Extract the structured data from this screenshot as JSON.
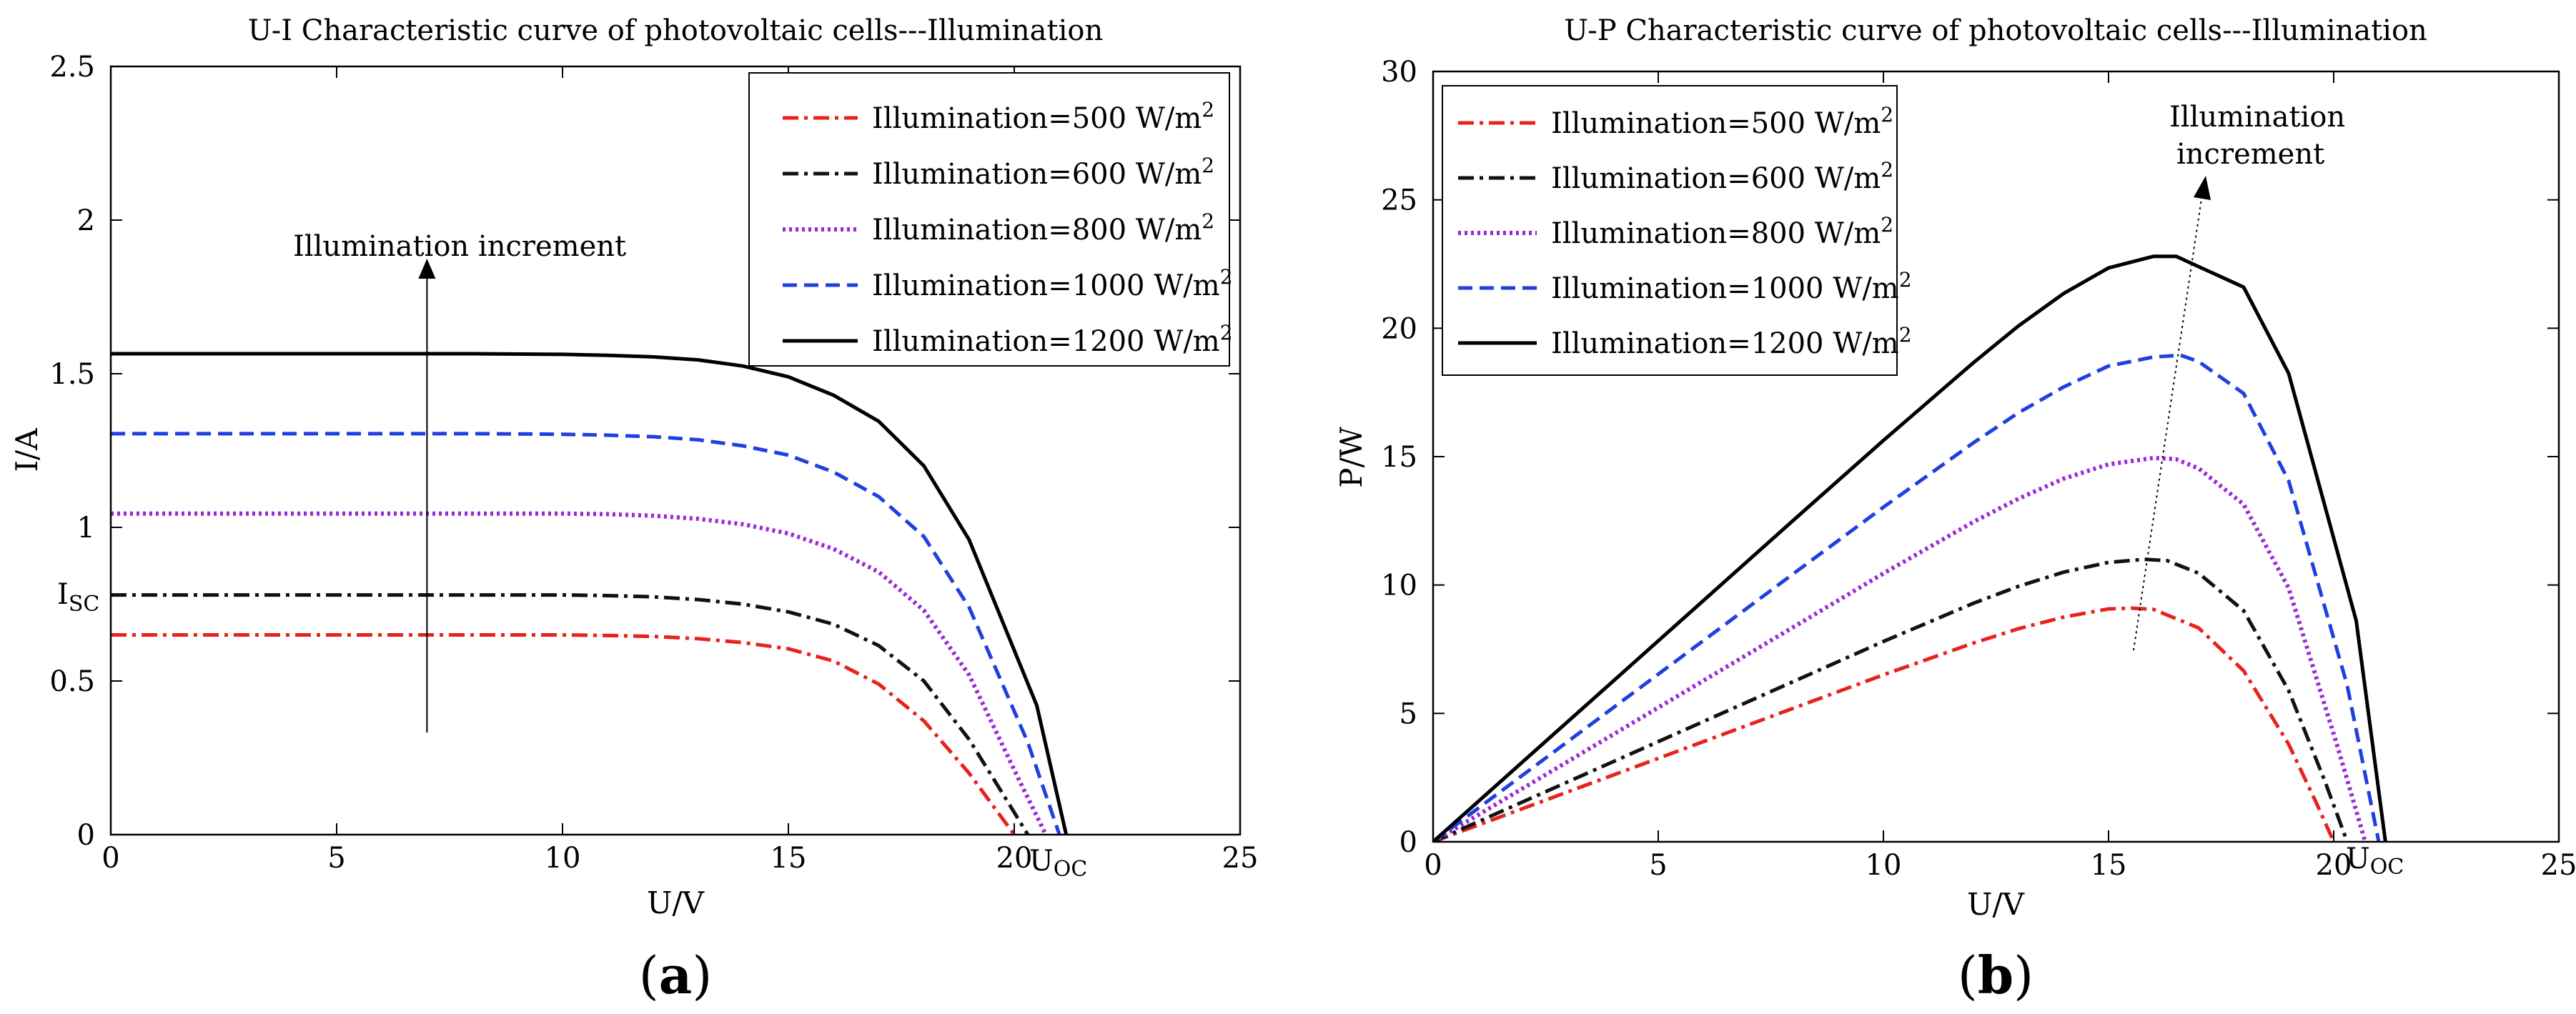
{
  "chart_data": [
    {
      "type": "line",
      "panel": "a",
      "panel_label": "a",
      "title": "U-I Characteristic curve of photovoltaic cells---Illumination",
      "xlabel": "U/V",
      "ylabel": "I/A",
      "xlim": [
        0,
        25
      ],
      "ylim": [
        0,
        2.5
      ],
      "xticks": [
        0,
        5,
        10,
        15,
        20,
        25
      ],
      "xtick_labels": [
        "0",
        "5",
        "10",
        "15",
        "20",
        "25"
      ],
      "yticks": [
        0,
        0.5,
        1,
        1.5,
        2,
        2.5
      ],
      "ytick_labels": [
        "0",
        "0.5",
        "1",
        "1.5",
        "2",
        "2.5"
      ],
      "grid": false,
      "legend_position": "top-right",
      "annotations": {
        "arrow_text": "Illumination  increment",
        "isc_main": "I",
        "isc_sub": "SC",
        "uoc_main": "U",
        "uoc_sub": "OC"
      },
      "series": [
        {
          "name": "Illumination=500 W/m2",
          "label": "Illumination=500 W/m",
          "sup": "2",
          "color": "#e8221c",
          "dash": "22,8,5,8",
          "width": 5,
          "x": [
            0,
            2,
            4,
            6,
            8,
            10,
            11,
            12,
            13,
            14,
            15,
            16,
            17,
            18,
            19,
            19.6,
            20.0
          ],
          "y": [
            0.65,
            0.65,
            0.65,
            0.65,
            0.65,
            0.65,
            0.648,
            0.645,
            0.638,
            0.625,
            0.605,
            0.565,
            0.49,
            0.37,
            0.2,
            0.08,
            0
          ]
        },
        {
          "name": "Illumination=600 W/m2",
          "label": "Illumination=600 W/m",
          "sup": "2",
          "color": "#111111",
          "dash": "22,8,5,8",
          "width": 5,
          "x": [
            0,
            2,
            4,
            6,
            8,
            10,
            11,
            12,
            13,
            14,
            15,
            16,
            17,
            18,
            19,
            19.8,
            20.3
          ],
          "y": [
            0.78,
            0.78,
            0.78,
            0.78,
            0.78,
            0.78,
            0.778,
            0.774,
            0.765,
            0.75,
            0.725,
            0.685,
            0.615,
            0.5,
            0.31,
            0.12,
            0
          ]
        },
        {
          "name": "Illumination=800 W/m2",
          "label": "Illumination=800 W/m",
          "sup": "2",
          "color": "#9b27d9",
          "dash": "4,5",
          "width": 6,
          "x": [
            0,
            2,
            4,
            6,
            8,
            10,
            11,
            12,
            13,
            14,
            15,
            16,
            17,
            18,
            19,
            20.1,
            20.7
          ],
          "y": [
            1.045,
            1.045,
            1.045,
            1.045,
            1.045,
            1.045,
            1.043,
            1.038,
            1.028,
            1.01,
            0.98,
            0.93,
            0.855,
            0.73,
            0.52,
            0.18,
            0
          ]
        },
        {
          "name": "Illumination=1000 W/m2",
          "label": "Illumination=1000 W/m",
          "sup": "2",
          "color": "#1f3fe0",
          "dash": "20,10",
          "width": 5,
          "x": [
            0,
            2,
            4,
            6,
            8,
            10,
            11,
            12,
            13,
            14,
            15,
            16,
            17,
            18,
            19,
            20.3,
            21.0
          ],
          "y": [
            1.305,
            1.305,
            1.305,
            1.305,
            1.305,
            1.303,
            1.3,
            1.295,
            1.285,
            1.265,
            1.235,
            1.18,
            1.1,
            0.97,
            0.74,
            0.3,
            0
          ]
        },
        {
          "name": "Illumination=1200 W/m2",
          "label": "Illumination=1200 W/m",
          "sup": "2",
          "color": "#000000",
          "dash": "",
          "width": 5,
          "x": [
            0,
            2,
            4,
            6,
            8,
            10,
            11,
            12,
            13,
            14,
            15,
            16,
            17,
            18,
            19,
            20.5,
            21.15
          ],
          "y": [
            1.565,
            1.565,
            1.565,
            1.565,
            1.565,
            1.563,
            1.56,
            1.555,
            1.545,
            1.525,
            1.49,
            1.43,
            1.345,
            1.2,
            0.96,
            0.42,
            0
          ]
        }
      ]
    },
    {
      "type": "line",
      "panel": "b",
      "panel_label": "b",
      "title": "U-P Characteristic curve of photovoltaic cells---Illumination",
      "xlabel": "U/V",
      "ylabel": "P/W",
      "xlim": [
        0,
        25
      ],
      "ylim": [
        0,
        30
      ],
      "xticks": [
        0,
        5,
        10,
        15,
        20,
        25
      ],
      "xtick_labels": [
        "0",
        "5",
        "10",
        "15",
        "20",
        "25"
      ],
      "yticks": [
        0,
        5,
        10,
        15,
        20,
        25,
        30
      ],
      "ytick_labels": [
        "0",
        "5",
        "10",
        "15",
        "20",
        "25",
        "30"
      ],
      "grid": false,
      "legend_position": "top-left",
      "annotations": {
        "arrow_text_line1": "Illumination",
        "arrow_text_line2": "increment",
        "uoc_main": "U",
        "uoc_sub": "OC"
      },
      "series": [
        {
          "name": "Illumination=500 W/m2",
          "label": "Illumination=500 W/m",
          "sup": "2",
          "color": "#e8221c",
          "dash": "22,8,5,8",
          "width": 5,
          "x": [
            0,
            2,
            4,
            6,
            8,
            10,
            12,
            13,
            14,
            15,
            15.5,
            16,
            17,
            18,
            19,
            19.6,
            20.0
          ],
          "y": [
            0,
            1.3,
            2.6,
            3.9,
            5.2,
            6.5,
            7.74,
            8.3,
            8.75,
            9.07,
            9.1,
            9.05,
            8.33,
            6.66,
            3.8,
            1.57,
            0
          ]
        },
        {
          "name": "Illumination=600 W/m2",
          "label": "Illumination=600 W/m",
          "sup": "2",
          "color": "#111111",
          "dash": "22,8,5,8",
          "width": 5,
          "x": [
            0,
            2,
            4,
            6,
            8,
            10,
            12,
            13,
            14,
            15,
            15.8,
            16.3,
            17,
            18,
            19,
            19.8,
            20.3
          ],
          "y": [
            0,
            1.56,
            3.12,
            4.68,
            6.24,
            7.8,
            9.29,
            9.95,
            10.5,
            10.88,
            11.0,
            10.95,
            10.46,
            9.0,
            5.89,
            2.38,
            0
          ]
        },
        {
          "name": "Illumination=800 W/m2",
          "label": "Illumination=800 W/m",
          "sup": "2",
          "color": "#9b27d9",
          "dash": "4,5",
          "width": 6,
          "x": [
            0,
            2,
            4,
            6,
            8,
            10,
            12,
            13,
            14,
            15,
            16,
            16.5,
            17,
            18,
            19,
            20.1,
            20.7
          ],
          "y": [
            0,
            2.09,
            4.18,
            6.27,
            8.36,
            10.45,
            12.46,
            13.36,
            14.14,
            14.7,
            14.95,
            14.9,
            14.54,
            13.14,
            9.88,
            3.62,
            0
          ]
        },
        {
          "name": "Illumination=1000 W/m2",
          "label": "Illumination=1000 W/m",
          "sup": "2",
          "color": "#1f3fe0",
          "dash": "20,10",
          "width": 5,
          "x": [
            0,
            2,
            4,
            6,
            8,
            10,
            12,
            13,
            14,
            15,
            16,
            16.6,
            17,
            18,
            19,
            20.3,
            21.0
          ],
          "y": [
            0,
            2.61,
            5.22,
            7.83,
            10.44,
            13.03,
            15.54,
            16.71,
            17.71,
            18.53,
            18.88,
            18.95,
            18.7,
            17.46,
            14.06,
            6.09,
            0
          ]
        },
        {
          "name": "Illumination=1200 W/m2",
          "label": "Illumination=1200 W/m",
          "sup": "2",
          "color": "#000000",
          "dash": "",
          "width": 5,
          "x": [
            0,
            2,
            4,
            6,
            8,
            10,
            12,
            13,
            14,
            15,
            16,
            16.5,
            17,
            18,
            19,
            20.5,
            21.15
          ],
          "y": [
            0,
            3.13,
            6.26,
            9.39,
            12.52,
            15.63,
            18.66,
            20.09,
            21.35,
            22.35,
            22.8,
            22.8,
            22.4,
            21.6,
            18.24,
            8.61,
            0
          ]
        }
      ]
    }
  ]
}
